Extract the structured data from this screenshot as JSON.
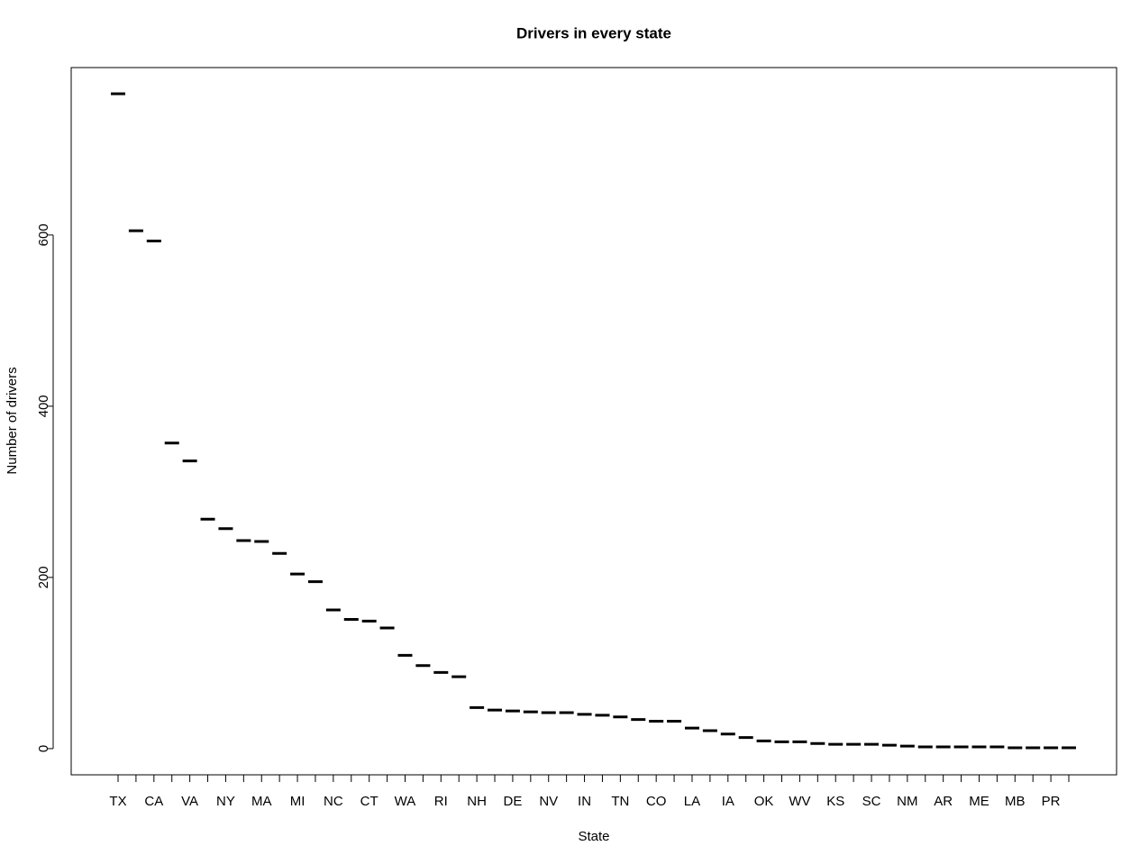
{
  "chart_data": {
    "type": "box",
    "title": "Drivers in every state",
    "x_label": "State",
    "y_label": "Number of drivers",
    "categories": [
      "TX",
      null,
      "CA",
      null,
      "VA",
      null,
      "NY",
      null,
      "MA",
      null,
      "MI",
      null,
      "NC",
      null,
      "CT",
      null,
      "WA",
      null,
      "RI",
      null,
      "NH",
      null,
      "DE",
      null,
      "NV",
      null,
      "IN",
      null,
      "TN",
      null,
      "CO",
      null,
      "LA",
      null,
      "IA",
      null,
      "OK",
      null,
      "WV",
      null,
      "KS",
      null,
      "SC",
      null,
      "NM",
      null,
      "AR",
      null,
      "ME",
      null,
      "MB",
      null,
      "PR",
      null
    ],
    "values": [
      765,
      605,
      593,
      357,
      336,
      268,
      257,
      243,
      242,
      228,
      204,
      195,
      162,
      151,
      149,
      141,
      109,
      97,
      89,
      84,
      48,
      45,
      44,
      43,
      42,
      42,
      40,
      39,
      37,
      34,
      32,
      32,
      24,
      21,
      17,
      13,
      9,
      8,
      8,
      6,
      5,
      5,
      5,
      4,
      3,
      2,
      2,
      2,
      2,
      2,
      1,
      1,
      1,
      1
    ],
    "color": "#000000",
    "ylim": [
      -30.6,
      795.6
    ],
    "yticks": [
      0,
      200,
      400,
      600
    ]
  }
}
